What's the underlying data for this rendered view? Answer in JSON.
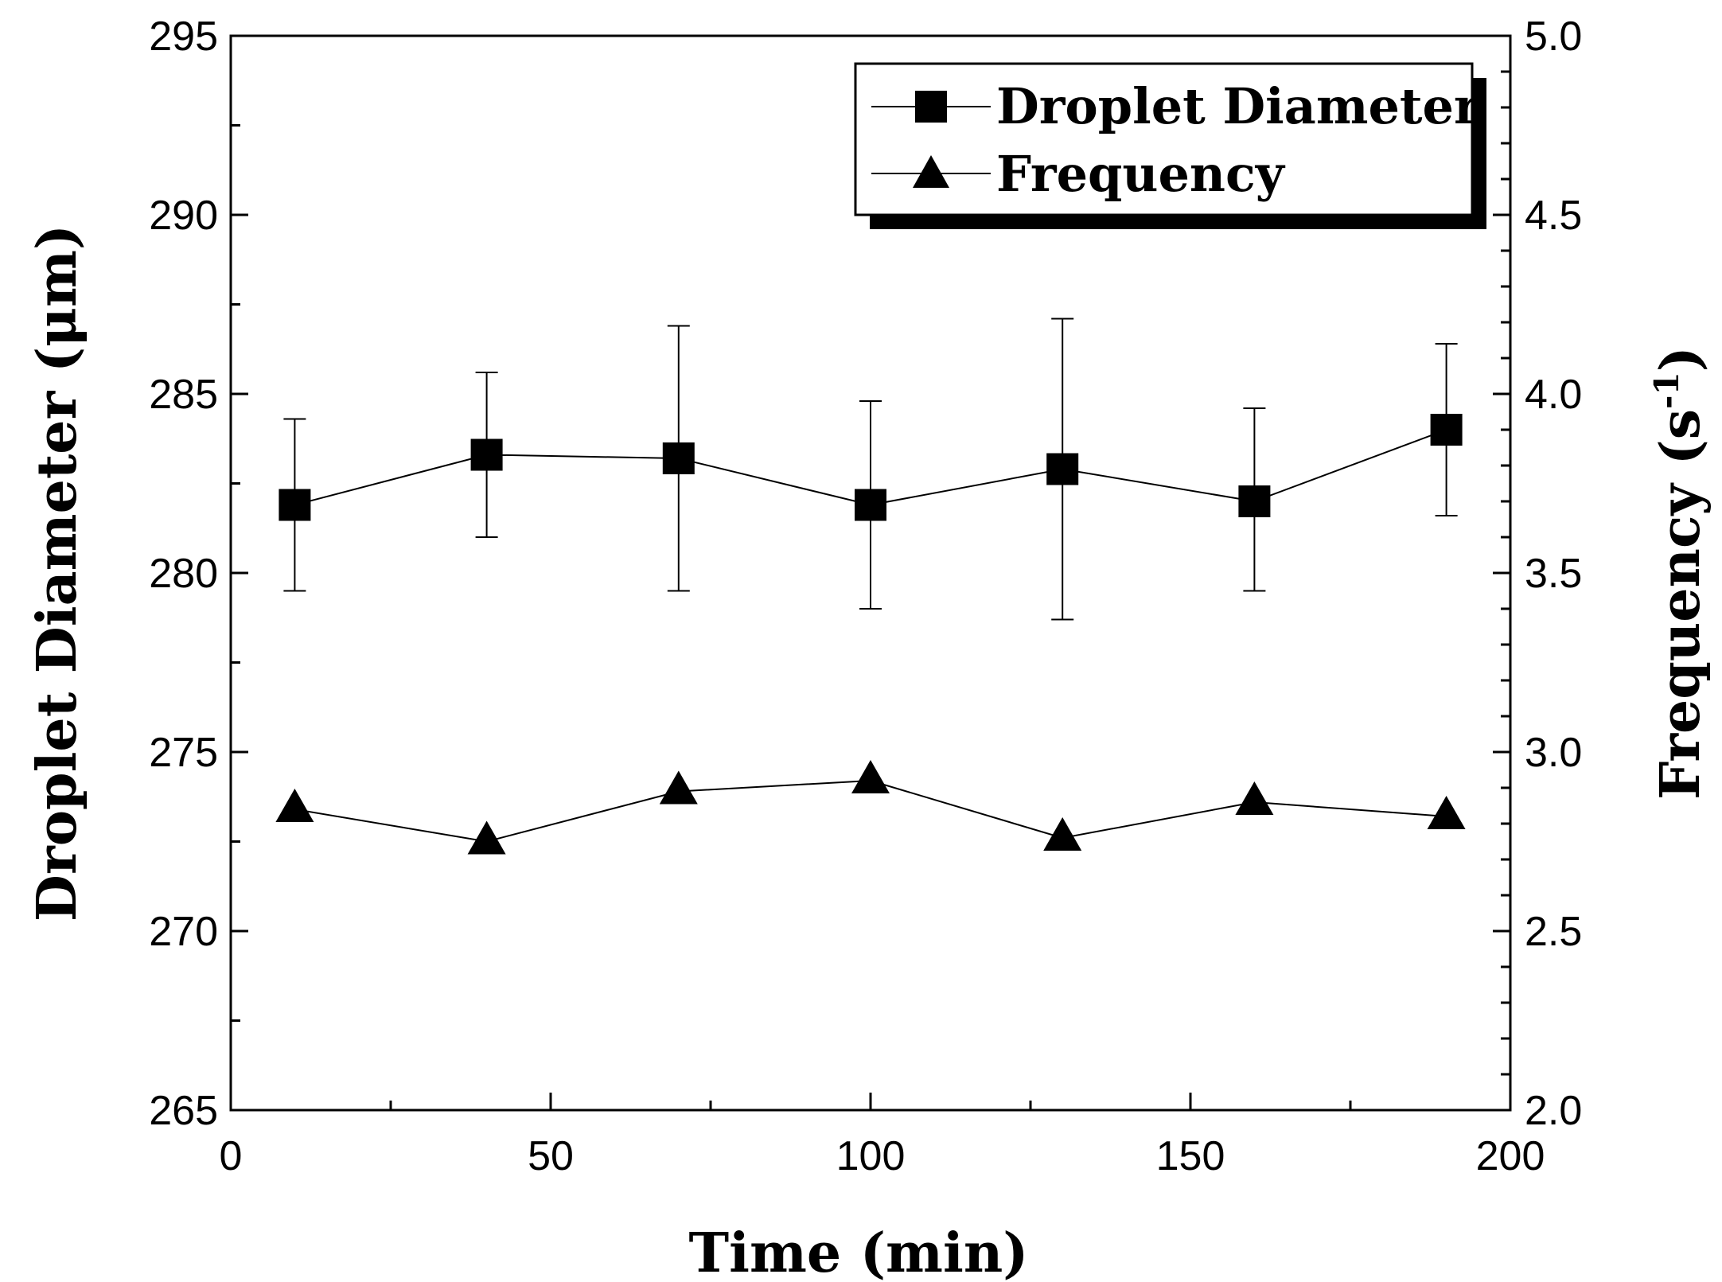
{
  "chart_data": {
    "type": "line",
    "title": "",
    "xlabel": "Time (min)",
    "ylabel_left": "Droplet Diameter (μm)",
    "ylabel_right_base": "Frequency (s",
    "ylabel_right_sup": "-1",
    "ylabel_right_close": ")",
    "xlim": [
      0,
      200
    ],
    "ylim_left": [
      265,
      295
    ],
    "ylim_right": [
      2.0,
      5.0
    ],
    "x_ticks": [
      "0",
      "50",
      "100",
      "150",
      "200"
    ],
    "y_left_ticks": [
      "265",
      "270",
      "275",
      "280",
      "285",
      "290",
      "295"
    ],
    "y_right_ticks": [
      "2.0",
      "2.5",
      "3.0",
      "3.5",
      "4.0",
      "4.5",
      "5.0"
    ],
    "legend_position": "top-right",
    "series": [
      {
        "name": "Droplet Diameter",
        "axis": "left",
        "marker": "square",
        "x": [
          10,
          40,
          70,
          100,
          130,
          160,
          190
        ],
        "y": [
          281.9,
          283.3,
          283.2,
          281.9,
          282.9,
          282.0,
          284.0
        ],
        "err_low": [
          279.5,
          281.0,
          279.5,
          279.0,
          278.7,
          279.5,
          281.6
        ],
        "err_high": [
          284.3,
          285.6,
          286.9,
          284.8,
          287.1,
          284.6,
          286.4
        ]
      },
      {
        "name": "Frequency",
        "axis": "right",
        "marker": "triangle",
        "x": [
          10,
          40,
          70,
          100,
          130,
          160,
          190
        ],
        "y": [
          2.84,
          2.75,
          2.89,
          2.92,
          2.76,
          2.86,
          2.82
        ]
      }
    ]
  }
}
